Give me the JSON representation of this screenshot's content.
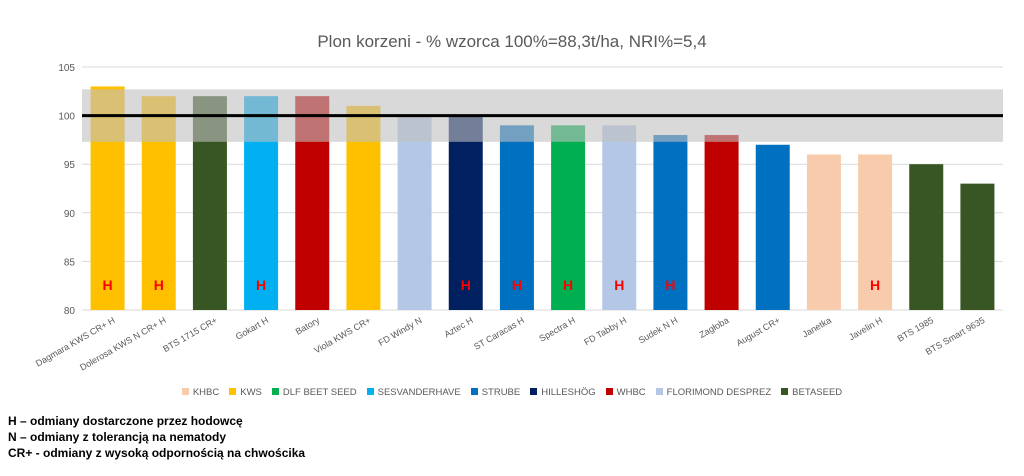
{
  "chart_data": {
    "type": "bar",
    "title": "Plon korzeni - % wzorca 100%=88,3t/ha, NRI%=5,4",
    "categories": [
      "Dagmara KWS CR+ H",
      "Dolerosa KWS N CR+ H",
      "BTS 1715 CR+",
      "Gokart  H",
      "Batory",
      "Viola KWS CR+",
      "FD Windy N",
      "Aztec  H",
      "ST Caracas  H",
      "Spectra  H",
      "FD Tabby  H",
      "Sudek N H",
      "Zagłoba",
      "August CR+",
      "Janetka",
      "Javelin H",
      "BTS 1985",
      "BTS Smart 9635"
    ],
    "values": [
      103,
      102,
      102,
      102,
      102,
      101,
      100,
      100,
      99,
      99,
      99,
      98,
      98,
      97,
      96,
      96,
      95,
      93
    ],
    "breeders": [
      "KWS",
      "KWS",
      "BETASEED",
      "SESVANDERHAVE",
      "WHBC",
      "KWS",
      "FLORIMOND DESPREZ",
      "HILLESHÖG",
      "STRUBE",
      "DLF BEET SEED",
      "FLORIMOND DESPREZ",
      "STRUBE",
      "WHBC",
      "STRUBE",
      "KHBC",
      "KHBC",
      "BETASEED",
      "BETASEED"
    ],
    "bar_marks": [
      "H",
      "H",
      "",
      "H",
      "",
      "",
      "",
      "H",
      "H",
      "H",
      "H",
      "H",
      "",
      "",
      "",
      "H",
      "",
      ""
    ],
    "ylim": [
      80,
      105
    ],
    "yticks": [
      "80",
      "85",
      "90",
      "95",
      "100",
      "105"
    ],
    "reference_line": 100,
    "nri_band": [
      97.3,
      102.7
    ],
    "grid": true,
    "legend_position": "bottom",
    "legend": [
      {
        "name": "KHBC",
        "color": "#F8CBAD"
      },
      {
        "name": "KWS",
        "color": "#FFC000"
      },
      {
        "name": "DLF BEET SEED",
        "color": "#00B050"
      },
      {
        "name": "SESVANDERHAVE",
        "color": "#00B0F0"
      },
      {
        "name": "STRUBE",
        "color": "#0070C0"
      },
      {
        "name": "HILLESHÖG",
        "color": "#002060"
      },
      {
        "name": "WHBC",
        "color": "#C00000"
      },
      {
        "name": "FLORIMOND DESPREZ",
        "color": "#B4C7E7"
      },
      {
        "name": "BETASEED",
        "color": "#375623"
      }
    ],
    "mark_color": "#FF0000",
    "band_color": "#BFBFBF"
  },
  "notes": [
    "H – odmiany dostarczone przez hodowcę",
    "N – odmiany z tolerancją na nematody",
    "CR+ - odmiany z wysoką odpornością na chwościka"
  ]
}
